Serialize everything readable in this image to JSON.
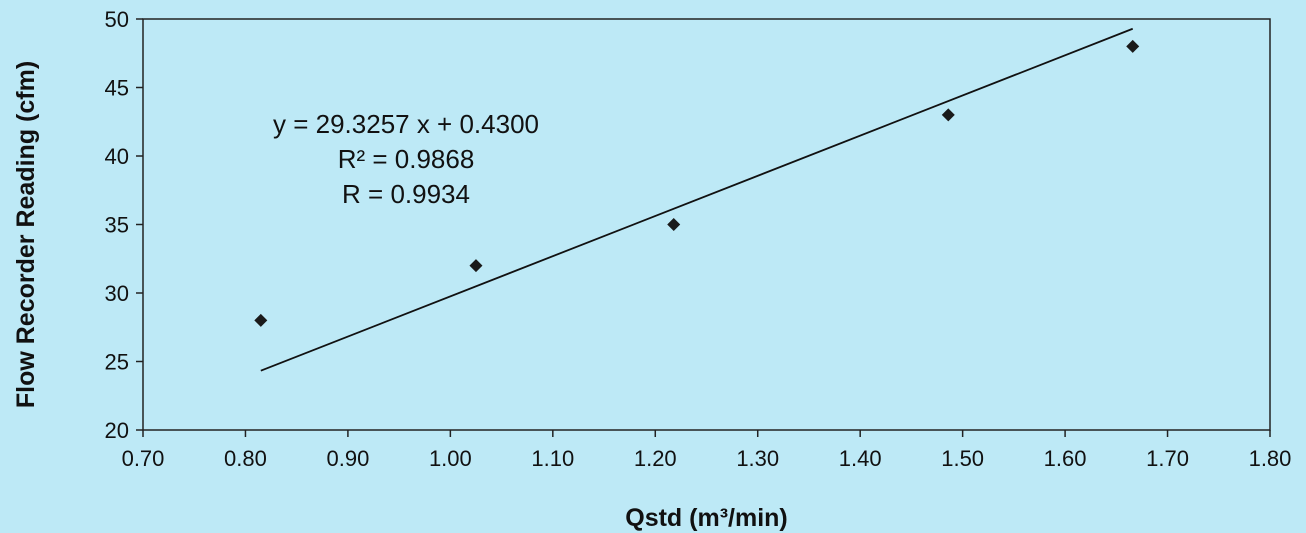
{
  "chart_data": {
    "type": "scatter",
    "title": "",
    "xlabel": "Qstd (m³/min)",
    "ylabel": "Flow Recorder Reading (cfm)",
    "xlim": [
      0.7,
      1.8
    ],
    "ylim": [
      20,
      50
    ],
    "x_ticks": [
      "0.70",
      "0.80",
      "0.90",
      "1.00",
      "1.10",
      "1.20",
      "1.30",
      "1.40",
      "1.50",
      "1.60",
      "1.70",
      "1.80"
    ],
    "y_ticks": [
      "20",
      "25",
      "30",
      "35",
      "40",
      "45",
      "50"
    ],
    "grid": false,
    "legend": "none",
    "series": [
      {
        "points": [
          {
            "x": 0.815,
            "y": 28
          },
          {
            "x": 1.025,
            "y": 32
          },
          {
            "x": 1.218,
            "y": 35
          },
          {
            "x": 1.486,
            "y": 43
          },
          {
            "x": 1.666,
            "y": 48
          }
        ]
      }
    ],
    "trendline": {
      "slope": 29.3257,
      "intercept": 0.43,
      "x_range": [
        0.815,
        1.666
      ]
    },
    "annotations": [
      "y = 29.3257 x + 0.4300",
      "R² = 0.9868",
      "R = 0.9934"
    ],
    "colors": {
      "background": "#bde9f6",
      "plot_background": "#bde9f6",
      "marker": "#1a1a1a",
      "line": "#111111"
    }
  }
}
